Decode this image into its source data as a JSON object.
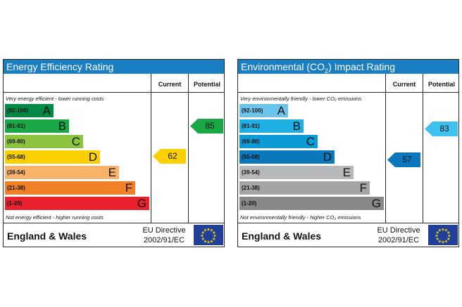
{
  "energy": {
    "title": "Energy Efficiency Rating",
    "col_current": "Current",
    "col_potential": "Potential",
    "top_note": "Very energy efficient - lower running costs",
    "bottom_note": "Not energy efficient - higher running costs",
    "bands": [
      {
        "range": "(92-100)",
        "letter": "A",
        "color": "#008a46"
      },
      {
        "range": "(81-91)",
        "letter": "B",
        "color": "#1aa847"
      },
      {
        "range": "(69-80)",
        "letter": "C",
        "color": "#8cc43f"
      },
      {
        "range": "(55-68)",
        "letter": "D",
        "color": "#fcd000"
      },
      {
        "range": "(39-54)",
        "letter": "E",
        "color": "#f8b26a"
      },
      {
        "range": "(21-38)",
        "letter": "F",
        "color": "#f07f26"
      },
      {
        "range": "(1-20)",
        "letter": "G",
        "color": "#e9212d"
      }
    ],
    "current": {
      "value": "62",
      "band": "D",
      "color": "#fcd000"
    },
    "potential": {
      "value": "85",
      "band": "B",
      "color": "#1aa847"
    },
    "footer_country": "England & Wales",
    "directive_line1": "EU Directive",
    "directive_line2": "2002/91/EC"
  },
  "environment": {
    "title": "Environmental (CO",
    "title_sub": "2",
    "title_end": ") Impact Rating",
    "col_current": "Current",
    "col_potential": "Potential",
    "top_note": "Very environmentally friendly - lower CO₂ emissions",
    "bottom_note": "Not environmentally friendly - higher CO₂ emissions",
    "bands": [
      {
        "range": "(92-100)",
        "letter": "A",
        "color": "#6cc4ec"
      },
      {
        "range": "(81-91)",
        "letter": "B",
        "color": "#1eb0e4"
      },
      {
        "range": "(69-80)",
        "letter": "C",
        "color": "#0b9bd6"
      },
      {
        "range": "(55-68)",
        "letter": "D",
        "color": "#0b77bd"
      },
      {
        "range": "(39-54)",
        "letter": "E",
        "color": "#b6b8ba"
      },
      {
        "range": "(21-38)",
        "letter": "F",
        "color": "#a2a4a6"
      },
      {
        "range": "(1-20)",
        "letter": "G",
        "color": "#86888a"
      }
    ],
    "current": {
      "value": "57",
      "band": "D",
      "color": "#0b77bd"
    },
    "potential": {
      "value": "83",
      "band": "B",
      "color": "#3ec1ef"
    },
    "footer_country": "England & Wales",
    "directive_line1": "EU Directive",
    "directive_line2": "2002/91/EC"
  }
}
